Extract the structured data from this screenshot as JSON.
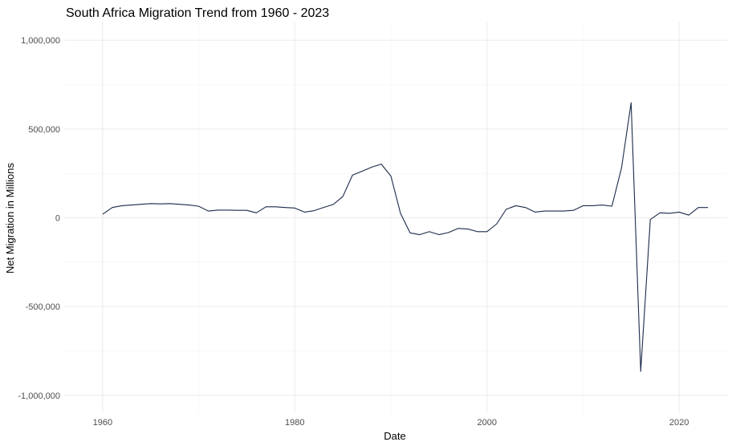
{
  "chart_data": {
    "type": "line",
    "title": "South Africa Migration Trend from 1960 - 2023",
    "xlabel": "Date",
    "ylabel": "Net Migration in Millions",
    "xlim": [
      1956,
      2025
    ],
    "ylim": [
      -1100000,
      1100000
    ],
    "x_ticks": [
      1960,
      1980,
      2000,
      2020
    ],
    "x_tick_labels": [
      "1960",
      "1980",
      "2000",
      "2020"
    ],
    "y_ticks": [
      -1000000,
      -500000,
      0,
      500000,
      1000000
    ],
    "y_tick_labels": [
      "-1,000,000",
      "-500,000",
      "0",
      "500,000",
      "1,000,000"
    ],
    "grid": true,
    "line_color": "#1b2a4a",
    "series": [
      {
        "x": [
          1960,
          1961,
          1962,
          1963,
          1964,
          1965,
          1966,
          1967,
          1968,
          1969,
          1970,
          1971,
          1972,
          1973,
          1974,
          1975,
          1976,
          1977,
          1978,
          1979,
          1980,
          1981,
          1982,
          1983,
          1984,
          1985,
          1986,
          1987,
          1988,
          1989,
          1990,
          1991,
          1992,
          1993,
          1994,
          1995,
          1996,
          1997,
          1998,
          1999,
          2000,
          2001,
          2002,
          2003,
          2004,
          2005,
          2006,
          2007,
          2008,
          2009,
          2010,
          2011,
          2012,
          2013,
          2014,
          2015,
          2016,
          2017,
          2018,
          2019,
          2020,
          2021,
          2022,
          2023
        ],
        "y": [
          20000,
          58000,
          68000,
          72000,
          76000,
          80000,
          78000,
          80000,
          76000,
          72000,
          65000,
          38000,
          43000,
          43000,
          42000,
          42000,
          28000,
          62000,
          62000,
          58000,
          55000,
          32000,
          40000,
          58000,
          75000,
          120000,
          240000,
          262000,
          285000,
          302000,
          235000,
          25000,
          -85000,
          -95000,
          -78000,
          -95000,
          -83000,
          -60000,
          -63000,
          -78000,
          -78000,
          -35000,
          48000,
          68000,
          58000,
          32000,
          38000,
          38000,
          38000,
          42000,
          68000,
          68000,
          72000,
          65000,
          280000,
          648000,
          -865000,
          -10000,
          28000,
          25000,
          32000,
          15000,
          58000,
          58000
        ]
      }
    ]
  }
}
